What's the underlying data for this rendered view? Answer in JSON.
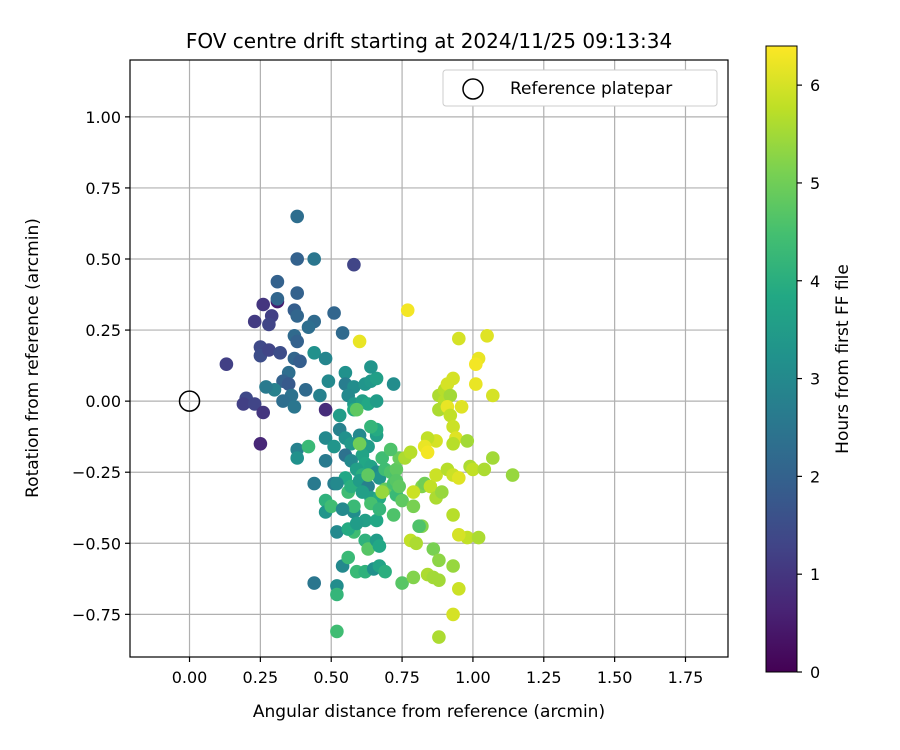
{
  "chart_data": {
    "type": "scatter",
    "title": "FOV centre drift starting at 2024/11/25 09:13:34",
    "xlabel": "Angular distance from reference (arcmin)",
    "ylabel": "Rotation from reference (arcmin)",
    "xlim": [
      -0.21,
      1.9
    ],
    "ylim": [
      -0.9,
      1.2
    ],
    "x_ticks": [
      "0.00",
      "0.25",
      "0.50",
      "0.75",
      "1.00",
      "1.25",
      "1.50",
      "1.75"
    ],
    "y_ticks": [
      "1.00",
      "0.75",
      "0.50",
      "0.25",
      "0.00",
      "−0.25",
      "−0.50",
      "−0.75"
    ],
    "x_tick_values": [
      0,
      0.25,
      0.5,
      0.75,
      1.0,
      1.25,
      1.5,
      1.75
    ],
    "y_tick_values": [
      1.0,
      0.75,
      0.5,
      0.25,
      0.0,
      -0.25,
      -0.5,
      -0.75
    ],
    "grid": true,
    "legend": {
      "placement": "top-right",
      "entries": [
        {
          "marker": "open-circle",
          "label": "Reference platepar"
        }
      ]
    },
    "reference_point": {
      "x": 0.0,
      "y": 0.0
    },
    "colorbar": {
      "label": "Hours from first FF file",
      "colormap": "viridis",
      "range": [
        0,
        6.4
      ],
      "ticks": [
        "0",
        "1",
        "2",
        "3",
        "4",
        "5",
        "6"
      ],
      "tick_values": [
        0,
        1,
        2,
        3,
        4,
        5,
        6
      ]
    },
    "points": [
      {
        "x": 0.26,
        "y": 0.34,
        "h": 1.0
      },
      {
        "x": 0.31,
        "y": 0.35,
        "h": 0.5
      },
      {
        "x": 0.29,
        "y": 0.3,
        "h": 1.2
      },
      {
        "x": 0.23,
        "y": 0.28,
        "h": 1.1
      },
      {
        "x": 0.28,
        "y": 0.27,
        "h": 1.3
      },
      {
        "x": 0.25,
        "y": 0.19,
        "h": 1.4
      },
      {
        "x": 0.25,
        "y": 0.16,
        "h": 1.5
      },
      {
        "x": 0.28,
        "y": 0.18,
        "h": 1.3
      },
      {
        "x": 0.32,
        "y": 0.17,
        "h": 1.5
      },
      {
        "x": 0.13,
        "y": 0.13,
        "h": 1.2
      },
      {
        "x": 0.2,
        "y": 0.01,
        "h": 1.4
      },
      {
        "x": 0.19,
        "y": -0.01,
        "h": 1.2
      },
      {
        "x": 0.23,
        "y": -0.01,
        "h": 1.3
      },
      {
        "x": 0.26,
        "y": -0.04,
        "h": 1.0
      },
      {
        "x": 0.25,
        "y": -0.15,
        "h": 0.7
      },
      {
        "x": 0.58,
        "y": 0.48,
        "h": 1.3
      },
      {
        "x": 0.38,
        "y": 0.65,
        "h": 2.3
      },
      {
        "x": 0.38,
        "y": 0.5,
        "h": 2.0
      },
      {
        "x": 0.44,
        "y": 0.5,
        "h": 2.5
      },
      {
        "x": 0.31,
        "y": 0.42,
        "h": 2.0
      },
      {
        "x": 0.31,
        "y": 0.36,
        "h": 2.1
      },
      {
        "x": 0.38,
        "y": 0.38,
        "h": 2.0
      },
      {
        "x": 0.37,
        "y": 0.32,
        "h": 1.9
      },
      {
        "x": 0.38,
        "y": 0.3,
        "h": 2.1
      },
      {
        "x": 0.44,
        "y": 0.28,
        "h": 2.2
      },
      {
        "x": 0.42,
        "y": 0.26,
        "h": 2.3
      },
      {
        "x": 0.51,
        "y": 0.31,
        "h": 2.1
      },
      {
        "x": 0.54,
        "y": 0.24,
        "h": 2.2
      },
      {
        "x": 0.37,
        "y": 0.23,
        "h": 2.2
      },
      {
        "x": 0.38,
        "y": 0.21,
        "h": 2.0
      },
      {
        "x": 0.37,
        "y": 0.15,
        "h": 2.1
      },
      {
        "x": 0.39,
        "y": 0.14,
        "h": 1.9
      },
      {
        "x": 0.35,
        "y": 0.1,
        "h": 2.3
      },
      {
        "x": 0.33,
        "y": 0.07,
        "h": 2.0
      },
      {
        "x": 0.35,
        "y": 0.06,
        "h": 1.8
      },
      {
        "x": 0.41,
        "y": 0.04,
        "h": 2.2
      },
      {
        "x": 0.36,
        "y": 0.02,
        "h": 2.4
      },
      {
        "x": 0.33,
        "y": 0.0,
        "h": 2.3
      },
      {
        "x": 0.37,
        "y": -0.02,
        "h": 2.5
      },
      {
        "x": 0.3,
        "y": 0.04,
        "h": 2.8
      },
      {
        "x": 0.27,
        "y": 0.05,
        "h": 2.6
      },
      {
        "x": 0.44,
        "y": 0.17,
        "h": 3.2
      },
      {
        "x": 0.46,
        "y": 0.02,
        "h": 2.8
      },
      {
        "x": 0.48,
        "y": -0.03,
        "h": 0.8
      },
      {
        "x": 0.49,
        "y": 0.07,
        "h": 3.0
      },
      {
        "x": 0.48,
        "y": 0.15,
        "h": 2.9
      },
      {
        "x": 0.55,
        "y": 0.1,
        "h": 3.2
      },
      {
        "x": 0.55,
        "y": 0.06,
        "h": 2.7
      },
      {
        "x": 0.58,
        "y": 0.05,
        "h": 3.1
      },
      {
        "x": 0.62,
        "y": 0.06,
        "h": 3.3
      },
      {
        "x": 0.64,
        "y": 0.07,
        "h": 3.4
      },
      {
        "x": 0.66,
        "y": 0.08,
        "h": 3.6
      },
      {
        "x": 0.64,
        "y": 0.12,
        "h": 3.3
      },
      {
        "x": 0.72,
        "y": 0.06,
        "h": 3.1
      },
      {
        "x": 0.56,
        "y": 0.02,
        "h": 3.0
      },
      {
        "x": 0.58,
        "y": -0.01,
        "h": 3.4
      },
      {
        "x": 0.61,
        "y": 0.0,
        "h": 3.6
      },
      {
        "x": 0.63,
        "y": -0.01,
        "h": 3.8
      },
      {
        "x": 0.66,
        "y": 0.0,
        "h": 3.5
      },
      {
        "x": 0.58,
        "y": -0.03,
        "h": 3.9
      },
      {
        "x": 0.53,
        "y": -0.05,
        "h": 3.5
      },
      {
        "x": 0.53,
        "y": -0.1,
        "h": 2.8
      },
      {
        "x": 0.55,
        "y": -0.13,
        "h": 3.2
      },
      {
        "x": 0.57,
        "y": -0.15,
        "h": 3.4
      },
      {
        "x": 0.6,
        "y": -0.12,
        "h": 3.0
      },
      {
        "x": 0.61,
        "y": -0.15,
        "h": 3.3
      },
      {
        "x": 0.63,
        "y": -0.16,
        "h": 3.5
      },
      {
        "x": 0.66,
        "y": -0.12,
        "h": 3.6
      },
      {
        "x": 0.66,
        "y": -0.1,
        "h": 3.9
      },
      {
        "x": 0.61,
        "y": -0.19,
        "h": 3.7
      },
      {
        "x": 0.62,
        "y": -0.22,
        "h": 3.8
      },
      {
        "x": 0.38,
        "y": -0.17,
        "h": 2.8
      },
      {
        "x": 0.38,
        "y": -0.2,
        "h": 3.2
      },
      {
        "x": 0.42,
        "y": -0.16,
        "h": 4.3
      },
      {
        "x": 0.48,
        "y": -0.13,
        "h": 3.0
      },
      {
        "x": 0.48,
        "y": -0.21,
        "h": 2.6
      },
      {
        "x": 0.51,
        "y": -0.16,
        "h": 3.3
      },
      {
        "x": 0.55,
        "y": -0.19,
        "h": 2.4
      },
      {
        "x": 0.57,
        "y": -0.21,
        "h": 3.0
      },
      {
        "x": 0.59,
        "y": -0.24,
        "h": 3.6
      },
      {
        "x": 0.55,
        "y": -0.27,
        "h": 3.8
      },
      {
        "x": 0.61,
        "y": -0.26,
        "h": 4.0
      },
      {
        "x": 0.64,
        "y": -0.23,
        "h": 3.7
      },
      {
        "x": 0.66,
        "y": -0.25,
        "h": 3.1
      },
      {
        "x": 0.67,
        "y": -0.27,
        "h": 3.3
      },
      {
        "x": 0.69,
        "y": -0.24,
        "h": 4.4
      },
      {
        "x": 0.71,
        "y": -0.25,
        "h": 4.6
      },
      {
        "x": 0.73,
        "y": -0.24,
        "h": 4.8
      },
      {
        "x": 0.74,
        "y": -0.2,
        "h": 4.9
      },
      {
        "x": 0.76,
        "y": -0.2,
        "h": 5.6
      },
      {
        "x": 0.78,
        "y": -0.18,
        "h": 5.7
      },
      {
        "x": 0.44,
        "y": -0.29,
        "h": 2.6
      },
      {
        "x": 0.51,
        "y": -0.29,
        "h": 2.7
      },
      {
        "x": 0.52,
        "y": -0.29,
        "h": 3.0
      },
      {
        "x": 0.56,
        "y": -0.32,
        "h": 4.4
      },
      {
        "x": 0.57,
        "y": -0.3,
        "h": 4.0
      },
      {
        "x": 0.6,
        "y": -0.28,
        "h": 3.5
      },
      {
        "x": 0.63,
        "y": -0.3,
        "h": 2.8
      },
      {
        "x": 0.64,
        "y": -0.34,
        "h": 3.6
      },
      {
        "x": 0.67,
        "y": -0.34,
        "h": 3.9
      },
      {
        "x": 0.69,
        "y": -0.31,
        "h": 4.9
      },
      {
        "x": 0.72,
        "y": -0.29,
        "h": 4.5
      },
      {
        "x": 0.73,
        "y": -0.28,
        "h": 4.7
      },
      {
        "x": 0.73,
        "y": -0.33,
        "h": 4.3
      },
      {
        "x": 0.82,
        "y": -0.3,
        "h": 5.2
      },
      {
        "x": 0.83,
        "y": -0.29,
        "h": 5.0
      },
      {
        "x": 0.85,
        "y": -0.3,
        "h": 5.8
      },
      {
        "x": 0.87,
        "y": -0.26,
        "h": 5.9
      },
      {
        "x": 0.48,
        "y": -0.35,
        "h": 4.1
      },
      {
        "x": 0.48,
        "y": -0.39,
        "h": 3.3
      },
      {
        "x": 0.5,
        "y": -0.37,
        "h": 4.4
      },
      {
        "x": 0.58,
        "y": -0.39,
        "h": 3.1
      },
      {
        "x": 0.58,
        "y": -0.37,
        "h": 4.3
      },
      {
        "x": 0.62,
        "y": -0.42,
        "h": 3.6
      },
      {
        "x": 0.64,
        "y": -0.36,
        "h": 4.5
      },
      {
        "x": 0.66,
        "y": -0.42,
        "h": 3.8
      },
      {
        "x": 0.67,
        "y": -0.38,
        "h": 4.2
      },
      {
        "x": 0.72,
        "y": -0.4,
        "h": 4.6
      },
      {
        "x": 0.75,
        "y": -0.35,
        "h": 4.8
      },
      {
        "x": 0.79,
        "y": -0.37,
        "h": 5.1
      },
      {
        "x": 0.82,
        "y": -0.44,
        "h": 5.2
      },
      {
        "x": 0.81,
        "y": -0.44,
        "h": 4.6
      },
      {
        "x": 0.52,
        "y": -0.46,
        "h": 3.0
      },
      {
        "x": 0.58,
        "y": -0.46,
        "h": 4.4
      },
      {
        "x": 0.56,
        "y": -0.45,
        "h": 3.9
      },
      {
        "x": 0.62,
        "y": -0.49,
        "h": 4.1
      },
      {
        "x": 0.63,
        "y": -0.52,
        "h": 4.7
      },
      {
        "x": 0.66,
        "y": -0.49,
        "h": 3.5
      },
      {
        "x": 0.67,
        "y": -0.51,
        "h": 3.8
      },
      {
        "x": 0.78,
        "y": -0.49,
        "h": 5.8
      },
      {
        "x": 0.8,
        "y": -0.5,
        "h": 5.6
      },
      {
        "x": 0.86,
        "y": -0.52,
        "h": 5.1
      },
      {
        "x": 0.88,
        "y": -0.56,
        "h": 5.3
      },
      {
        "x": 0.54,
        "y": -0.58,
        "h": 3.0
      },
      {
        "x": 0.56,
        "y": -0.55,
        "h": 4.3
      },
      {
        "x": 0.59,
        "y": -0.6,
        "h": 4.3
      },
      {
        "x": 0.62,
        "y": -0.6,
        "h": 4.1
      },
      {
        "x": 0.65,
        "y": -0.59,
        "h": 3.2
      },
      {
        "x": 0.67,
        "y": -0.58,
        "h": 3.7
      },
      {
        "x": 0.69,
        "y": -0.6,
        "h": 4.0
      },
      {
        "x": 0.75,
        "y": -0.64,
        "h": 4.7
      },
      {
        "x": 0.79,
        "y": -0.62,
        "h": 5.2
      },
      {
        "x": 0.84,
        "y": -0.61,
        "h": 5.6
      },
      {
        "x": 0.86,
        "y": -0.62,
        "h": 5.5
      },
      {
        "x": 0.88,
        "y": -0.63,
        "h": 5.5
      },
      {
        "x": 0.44,
        "y": -0.64,
        "h": 2.5
      },
      {
        "x": 0.52,
        "y": -0.65,
        "h": 3.1
      },
      {
        "x": 0.52,
        "y": -0.68,
        "h": 4.2
      },
      {
        "x": 0.52,
        "y": -0.81,
        "h": 4.4
      },
      {
        "x": 0.88,
        "y": -0.83,
        "h": 5.6
      },
      {
        "x": 0.95,
        "y": -0.66,
        "h": 5.9
      },
      {
        "x": 0.93,
        "y": -0.75,
        "h": 6.0
      },
      {
        "x": 0.93,
        "y": -0.58,
        "h": 5.4
      },
      {
        "x": 0.77,
        "y": 0.32,
        "h": 6.3
      },
      {
        "x": 0.6,
        "y": 0.21,
        "h": 6.2
      },
      {
        "x": 0.95,
        "y": 0.22,
        "h": 6.0
      },
      {
        "x": 1.05,
        "y": 0.23,
        "h": 6.1
      },
      {
        "x": 1.02,
        "y": 0.15,
        "h": 6.2
      },
      {
        "x": 1.01,
        "y": 0.13,
        "h": 6.3
      },
      {
        "x": 0.93,
        "y": 0.08,
        "h": 6.0
      },
      {
        "x": 1.01,
        "y": 0.06,
        "h": 6.2
      },
      {
        "x": 1.07,
        "y": 0.02,
        "h": 6.0
      },
      {
        "x": 0.88,
        "y": 0.02,
        "h": 5.6
      },
      {
        "x": 0.9,
        "y": 0.04,
        "h": 5.7
      },
      {
        "x": 0.91,
        "y": 0.06,
        "h": 6.0
      },
      {
        "x": 0.9,
        "y": 0.0,
        "h": 5.7
      },
      {
        "x": 0.92,
        "y": 0.02,
        "h": 5.5
      },
      {
        "x": 0.88,
        "y": -0.03,
        "h": 5.6
      },
      {
        "x": 0.91,
        "y": -0.02,
        "h": 6.2
      },
      {
        "x": 0.96,
        "y": -0.02,
        "h": 6.1
      },
      {
        "x": 0.92,
        "y": -0.05,
        "h": 5.8
      },
      {
        "x": 0.93,
        "y": -0.09,
        "h": 5.9
      },
      {
        "x": 0.94,
        "y": -0.13,
        "h": 6.1
      },
      {
        "x": 0.93,
        "y": -0.15,
        "h": 5.7
      },
      {
        "x": 0.98,
        "y": -0.14,
        "h": 5.5
      },
      {
        "x": 0.87,
        "y": -0.14,
        "h": 6.0
      },
      {
        "x": 0.84,
        "y": -0.13,
        "h": 5.8
      },
      {
        "x": 0.83,
        "y": -0.16,
        "h": 6.2
      },
      {
        "x": 0.84,
        "y": -0.18,
        "h": 6.3
      },
      {
        "x": 0.99,
        "y": -0.23,
        "h": 5.6
      },
      {
        "x": 1.0,
        "y": -0.24,
        "h": 5.8
      },
      {
        "x": 0.91,
        "y": -0.24,
        "h": 5.7
      },
      {
        "x": 0.93,
        "y": -0.26,
        "h": 5.9
      },
      {
        "x": 0.95,
        "y": -0.27,
        "h": 6.1
      },
      {
        "x": 1.04,
        "y": -0.24,
        "h": 5.6
      },
      {
        "x": 1.07,
        "y": -0.2,
        "h": 5.5
      },
      {
        "x": 1.14,
        "y": -0.26,
        "h": 5.4
      },
      {
        "x": 0.98,
        "y": -0.48,
        "h": 5.8
      },
      {
        "x": 0.95,
        "y": -0.47,
        "h": 6.0
      },
      {
        "x": 1.02,
        "y": -0.48,
        "h": 5.6
      },
      {
        "x": 0.93,
        "y": -0.4,
        "h": 5.7
      },
      {
        "x": 0.87,
        "y": -0.34,
        "h": 5.6
      },
      {
        "x": 0.89,
        "y": -0.32,
        "h": 5.4
      },
      {
        "x": 0.79,
        "y": -0.32,
        "h": 5.9
      },
      {
        "x": 0.68,
        "y": -0.32,
        "h": 5.4
      },
      {
        "x": 0.6,
        "y": -0.15,
        "h": 5.0
      },
      {
        "x": 0.59,
        "y": -0.03,
        "h": 4.8
      },
      {
        "x": 0.64,
        "y": -0.09,
        "h": 4.2
      },
      {
        "x": 0.63,
        "y": -0.26,
        "h": 4.8
      },
      {
        "x": 0.68,
        "y": -0.2,
        "h": 4.4
      },
      {
        "x": 0.71,
        "y": -0.17,
        "h": 4.6
      },
      {
        "x": 0.74,
        "y": -0.3,
        "h": 4.8
      },
      {
        "x": 0.61,
        "y": -0.32,
        "h": 3.6
      },
      {
        "x": 0.54,
        "y": -0.38,
        "h": 3.0
      },
      {
        "x": 0.59,
        "y": -0.43,
        "h": 3.5
      }
    ]
  }
}
